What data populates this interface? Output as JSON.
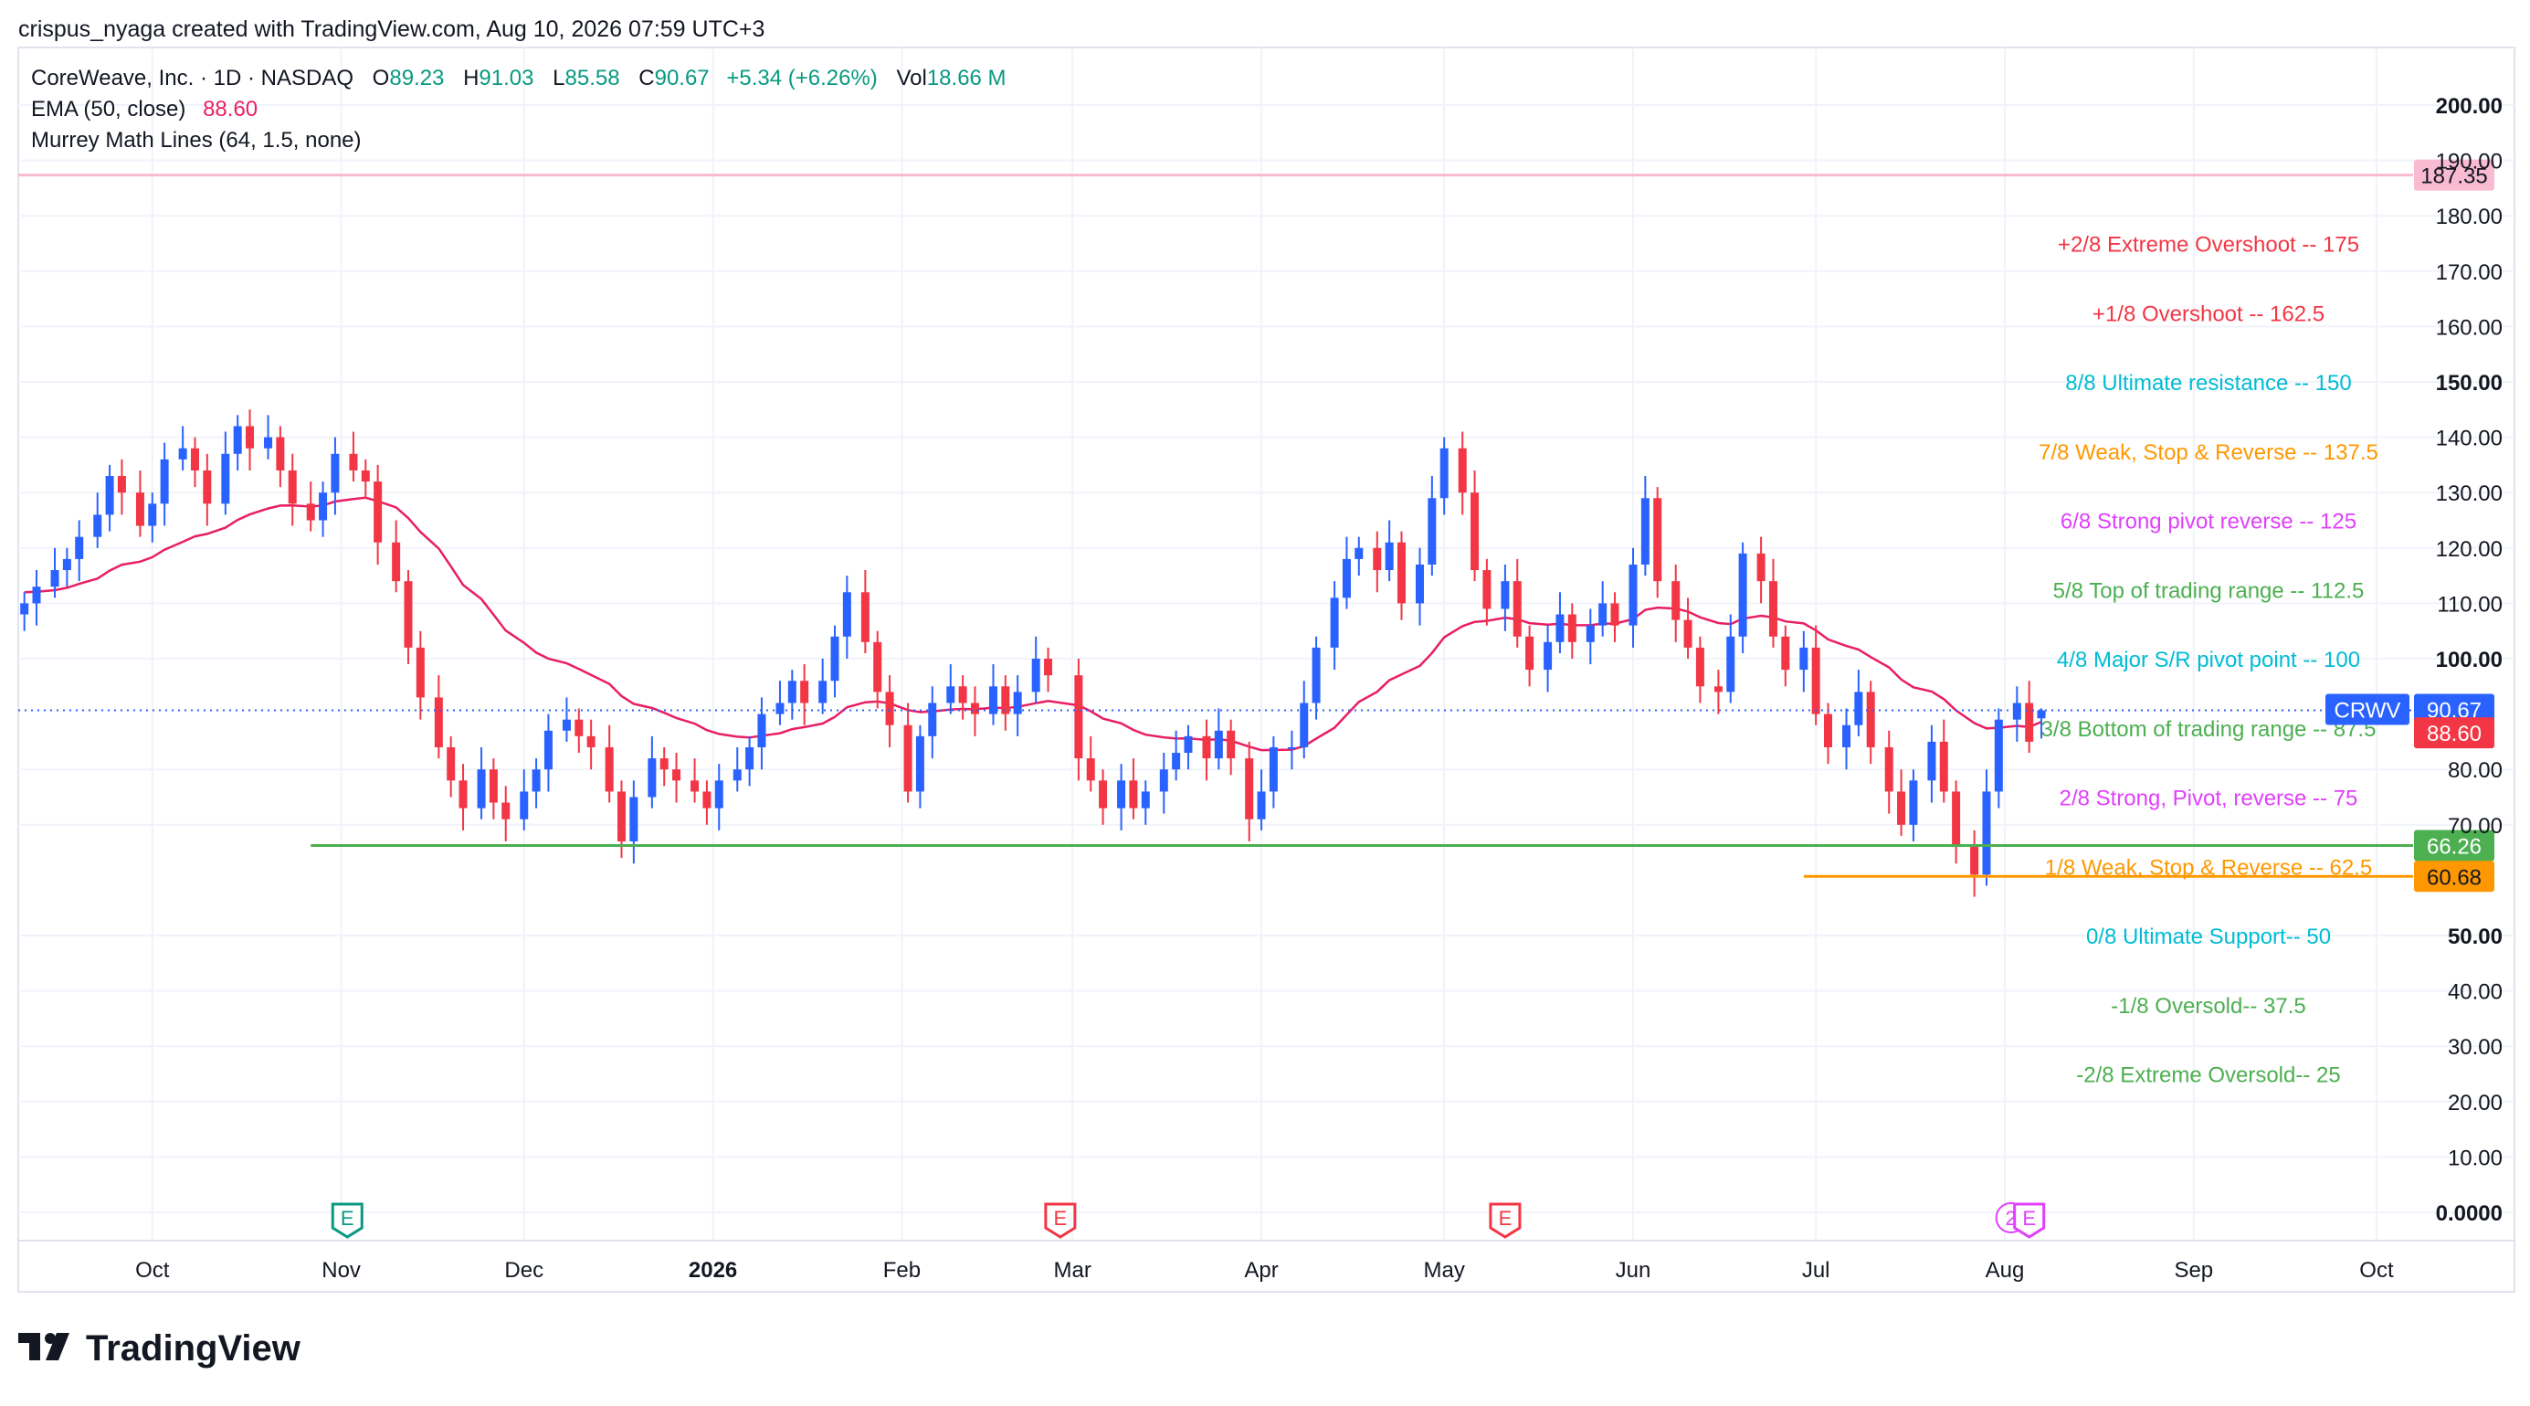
{
  "header": {
    "attribution": "crispus_nyaga created with TradingView.com, Aug 10, 2026 07:59 UTC+3"
  },
  "legend": {
    "symbol_title": "CoreWeave, Inc. · 1D · NASDAQ",
    "o_label": "O",
    "o_value": "89.23",
    "h_label": "H",
    "h_value": "91.03",
    "l_label": "L",
    "l_value": "85.58",
    "c_label": "C",
    "c_value": "90.67",
    "change": "+5.34 (+6.26%)",
    "vol_label": "Vol",
    "vol_value": "18.66 M",
    "ema_label": "EMA (50, close)",
    "ema_value": "88.60",
    "murrey_label": "Murrey Math Lines (64, 1.5, none)"
  },
  "footer": {
    "brand": "TradingView"
  },
  "colors": {
    "up": "#2962ff",
    "down": "#f23645",
    "ema": "#e91e63",
    "green_line": "#4caf50",
    "orange_line": "#ff9800",
    "pink_line": "#f8bbd0",
    "legend_value": "#089981",
    "grid": "#f0f3fa"
  },
  "chart_data": {
    "type": "candlestick",
    "symbol": "CRWV",
    "y_ticks": [
      {
        "v": 0,
        "label": "0.0000",
        "bold": true
      },
      {
        "v": 10,
        "label": "10.00"
      },
      {
        "v": 20,
        "label": "20.00"
      },
      {
        "v": 30,
        "label": "30.00"
      },
      {
        "v": 40,
        "label": "40.00"
      },
      {
        "v": 50,
        "label": "50.00",
        "bold": true
      },
      {
        "v": 70,
        "label": "70.00"
      },
      {
        "v": 80,
        "label": "80.00"
      },
      {
        "v": 100,
        "label": "100.00",
        "bold": true
      },
      {
        "v": 110,
        "label": "110.00"
      },
      {
        "v": 120,
        "label": "120.00"
      },
      {
        "v": 130,
        "label": "130.00"
      },
      {
        "v": 140,
        "label": "140.00"
      },
      {
        "v": 150,
        "label": "150.00",
        "bold": true
      },
      {
        "v": 160,
        "label": "160.00"
      },
      {
        "v": 170,
        "label": "170.00"
      },
      {
        "v": 180,
        "label": "180.00"
      },
      {
        "v": 190,
        "label": "190.00"
      },
      {
        "v": 200,
        "label": "200.00",
        "bold": true
      }
    ],
    "ylim": [
      0,
      205
    ],
    "x_ticks": [
      {
        "label": "Oct",
        "date": "2025-10-01"
      },
      {
        "label": "Nov",
        "date": "2025-11-01"
      },
      {
        "label": "Dec",
        "date": "2025-12-01"
      },
      {
        "label": "2026",
        "date": "2026-01-01",
        "bold": true
      },
      {
        "label": "Feb",
        "date": "2026-02-01"
      },
      {
        "label": "Mar",
        "date": "2026-03-01"
      },
      {
        "label": "Apr",
        "date": "2026-04-01"
      },
      {
        "label": "May",
        "date": "2026-05-01"
      },
      {
        "label": "Jun",
        "date": "2026-06-01"
      },
      {
        "label": "Jul",
        "date": "2026-07-01"
      },
      {
        "label": "Aug",
        "date": "2026-08-01"
      },
      {
        "label": "Sep",
        "date": "2026-09-01"
      },
      {
        "label": "Oct",
        "date": "2026-10-01"
      }
    ],
    "xlim": [
      "2025-09-09",
      "2026-10-07"
    ],
    "candles_close": [
      [
        "2025-09-10",
        110
      ],
      [
        "2025-09-12",
        113
      ],
      [
        "2025-09-15",
        116
      ],
      [
        "2025-09-17",
        118
      ],
      [
        "2025-09-19",
        122
      ],
      [
        "2025-09-22",
        126
      ],
      [
        "2025-09-24",
        133
      ],
      [
        "2025-09-26",
        130
      ],
      [
        "2025-09-29",
        124
      ],
      [
        "2025-10-01",
        128
      ],
      [
        "2025-10-03",
        136
      ],
      [
        "2025-10-06",
        138
      ],
      [
        "2025-10-08",
        134
      ],
      [
        "2025-10-10",
        128
      ],
      [
        "2025-10-13",
        137
      ],
      [
        "2025-10-15",
        142
      ],
      [
        "2025-10-17",
        138
      ],
      [
        "2025-10-20",
        140
      ],
      [
        "2025-10-22",
        134
      ],
      [
        "2025-10-24",
        128
      ],
      [
        "2025-10-27",
        125
      ],
      [
        "2025-10-29",
        130
      ],
      [
        "2025-10-31",
        137
      ],
      [
        "2025-11-03",
        134
      ],
      [
        "2025-11-05",
        132
      ],
      [
        "2025-11-07",
        121
      ],
      [
        "2025-11-10",
        114
      ],
      [
        "2025-11-12",
        102
      ],
      [
        "2025-11-14",
        93
      ],
      [
        "2025-11-17",
        84
      ],
      [
        "2025-11-19",
        78
      ],
      [
        "2025-11-21",
        73
      ],
      [
        "2025-11-24",
        80
      ],
      [
        "2025-11-26",
        74
      ],
      [
        "2025-11-28",
        71
      ],
      [
        "2025-12-01",
        76
      ],
      [
        "2025-12-03",
        80
      ],
      [
        "2025-12-05",
        87
      ],
      [
        "2025-12-08",
        89
      ],
      [
        "2025-12-10",
        86
      ],
      [
        "2025-12-12",
        84
      ],
      [
        "2025-12-15",
        76
      ],
      [
        "2025-12-17",
        67
      ],
      [
        "2025-12-19",
        75
      ],
      [
        "2025-12-22",
        82
      ],
      [
        "2025-12-24",
        80
      ],
      [
        "2025-12-26",
        78
      ],
      [
        "2025-12-29",
        76
      ],
      [
        "2025-12-31",
        73
      ],
      [
        "2026-01-02",
        78
      ],
      [
        "2026-01-05",
        80
      ],
      [
        "2026-01-07",
        84
      ],
      [
        "2026-01-09",
        90
      ],
      [
        "2026-01-12",
        92
      ],
      [
        "2026-01-14",
        96
      ],
      [
        "2026-01-16",
        92
      ],
      [
        "2026-01-19",
        96
      ],
      [
        "2026-01-21",
        104
      ],
      [
        "2026-01-23",
        112
      ],
      [
        "2026-01-26",
        103
      ],
      [
        "2026-01-28",
        94
      ],
      [
        "2026-01-30",
        88
      ],
      [
        "2026-02-02",
        76
      ],
      [
        "2026-02-04",
        86
      ],
      [
        "2026-02-06",
        92
      ],
      [
        "2026-02-09",
        95
      ],
      [
        "2026-02-11",
        92
      ],
      [
        "2026-02-13",
        90
      ],
      [
        "2026-02-16",
        95
      ],
      [
        "2026-02-18",
        90
      ],
      [
        "2026-02-20",
        94
      ],
      [
        "2026-02-23",
        100
      ],
      [
        "2026-02-25",
        97
      ],
      [
        "2026-03-02",
        82
      ],
      [
        "2026-03-04",
        78
      ],
      [
        "2026-03-06",
        73
      ],
      [
        "2026-03-09",
        78
      ],
      [
        "2026-03-11",
        73
      ],
      [
        "2026-03-13",
        76
      ],
      [
        "2026-03-16",
        80
      ],
      [
        "2026-03-18",
        83
      ],
      [
        "2026-03-20",
        86
      ],
      [
        "2026-03-23",
        82
      ],
      [
        "2026-03-25",
        87
      ],
      [
        "2026-03-27",
        82
      ],
      [
        "2026-03-30",
        71
      ],
      [
        "2026-04-01",
        76
      ],
      [
        "2026-04-03",
        84
      ],
      [
        "2026-04-06",
        84
      ],
      [
        "2026-04-08",
        92
      ],
      [
        "2026-04-10",
        102
      ],
      [
        "2026-04-13",
        111
      ],
      [
        "2026-04-15",
        118
      ],
      [
        "2026-04-17",
        120
      ],
      [
        "2026-04-20",
        116
      ],
      [
        "2026-04-22",
        121
      ],
      [
        "2026-04-24",
        110
      ],
      [
        "2026-04-27",
        117
      ],
      [
        "2026-04-29",
        129
      ],
      [
        "2026-05-01",
        138
      ],
      [
        "2026-05-04",
        130
      ],
      [
        "2026-05-06",
        116
      ],
      [
        "2026-05-08",
        109
      ],
      [
        "2026-05-11",
        114
      ],
      [
        "2026-05-13",
        104
      ],
      [
        "2026-05-15",
        98
      ],
      [
        "2026-05-18",
        103
      ],
      [
        "2026-05-20",
        108
      ],
      [
        "2026-05-22",
        103
      ],
      [
        "2026-05-25",
        106
      ],
      [
        "2026-05-27",
        110
      ],
      [
        "2026-05-29",
        106
      ],
      [
        "2026-06-01",
        117
      ],
      [
        "2026-06-03",
        129
      ],
      [
        "2026-06-05",
        114
      ],
      [
        "2026-06-08",
        107
      ],
      [
        "2026-06-10",
        102
      ],
      [
        "2026-06-12",
        95
      ],
      [
        "2026-06-15",
        94
      ],
      [
        "2026-06-17",
        104
      ],
      [
        "2026-06-19",
        119
      ],
      [
        "2026-06-22",
        114
      ],
      [
        "2026-06-24",
        104
      ],
      [
        "2026-06-26",
        98
      ],
      [
        "2026-06-29",
        102
      ],
      [
        "2026-07-01",
        90
      ],
      [
        "2026-07-03",
        84
      ],
      [
        "2026-07-06",
        88
      ],
      [
        "2026-07-08",
        94
      ],
      [
        "2026-07-10",
        84
      ],
      [
        "2026-07-13",
        76
      ],
      [
        "2026-07-15",
        70
      ],
      [
        "2026-07-17",
        78
      ],
      [
        "2026-07-20",
        85
      ],
      [
        "2026-07-22",
        76
      ],
      [
        "2026-07-24",
        66
      ],
      [
        "2026-07-27",
        61
      ],
      [
        "2026-07-29",
        76
      ],
      [
        "2026-07-31",
        89
      ],
      [
        "2026-08-03",
        92
      ],
      [
        "2026-08-05",
        85
      ],
      [
        "2026-08-07",
        90.67
      ]
    ],
    "series": [
      {
        "name": "EMA (50, close)",
        "last": 88.6
      }
    ],
    "murrey_levels": [
      {
        "label": "+2/8 Extreme Overshoot --  175",
        "value": 175,
        "color": "#f23645"
      },
      {
        "label": "+1/8 Overshoot --  162.5",
        "value": 162.5,
        "color": "#f23645"
      },
      {
        "label": "8/8 Ultimate resistance --  150",
        "value": 150,
        "color": "#00bcd4"
      },
      {
        "label": "7/8 Weak, Stop & Reverse --  137.5",
        "value": 137.5,
        "color": "#ff9800"
      },
      {
        "label": "6/8 Strong pivot reverse --  125",
        "value": 125,
        "color": "#e040fb"
      },
      {
        "label": "5/8 Top of trading range --  112.5",
        "value": 112.5,
        "color": "#4caf50"
      },
      {
        "label": "4/8 Major S/R pivot point --  100",
        "value": 100,
        "color": "#00bcd4"
      },
      {
        "label": "3/8 Bottom of trading range --  87.5",
        "value": 87.5,
        "color": "#4caf50"
      },
      {
        "label": "2/8 Strong, Pivot, reverse --  75",
        "value": 75,
        "color": "#e040fb"
      },
      {
        "label": "1/8 Weak, Stop & Reverse --  62.5",
        "value": 62.5,
        "color": "#ff9800"
      },
      {
        "label": "0/8 Ultimate Support--  50",
        "value": 50,
        "color": "#00bcd4"
      },
      {
        "label": "-1/8 Oversold--  37.5",
        "value": 37.5,
        "color": "#4caf50"
      },
      {
        "label": "-2/8 Extreme Oversold--  25",
        "value": 25,
        "color": "#4caf50"
      }
    ],
    "horizontal_lines": [
      {
        "value": 187.35,
        "label": "187.35",
        "color": "#f8bbd0",
        "text_color": "#131722",
        "from": "2025-09-09"
      },
      {
        "value": 66.26,
        "label": "66.26",
        "color": "#4caf50",
        "text_color": "#ffffff",
        "from": "2025-10-27"
      },
      {
        "value": 60.68,
        "label": "60.68",
        "color": "#ff9800",
        "text_color": "#131722",
        "from": "2026-06-29"
      }
    ],
    "price_labels": [
      {
        "value": 90.67,
        "label": "90.67",
        "color": "#2962ff"
      },
      {
        "value": 88.6,
        "label": "88.60",
        "color": "#f23645"
      }
    ],
    "last_price_tag": "CRWV",
    "events": [
      {
        "date": "2025-11-02",
        "label": "E",
        "color": "#089981"
      },
      {
        "date": "2026-02-27",
        "label": "E",
        "color": "#f23645"
      },
      {
        "date": "2026-05-11",
        "label": "E",
        "color": "#f23645"
      },
      {
        "date": "2026-08-05",
        "label": "E",
        "color": "#e040fb",
        "extra": "2"
      }
    ],
    "grid": true
  }
}
